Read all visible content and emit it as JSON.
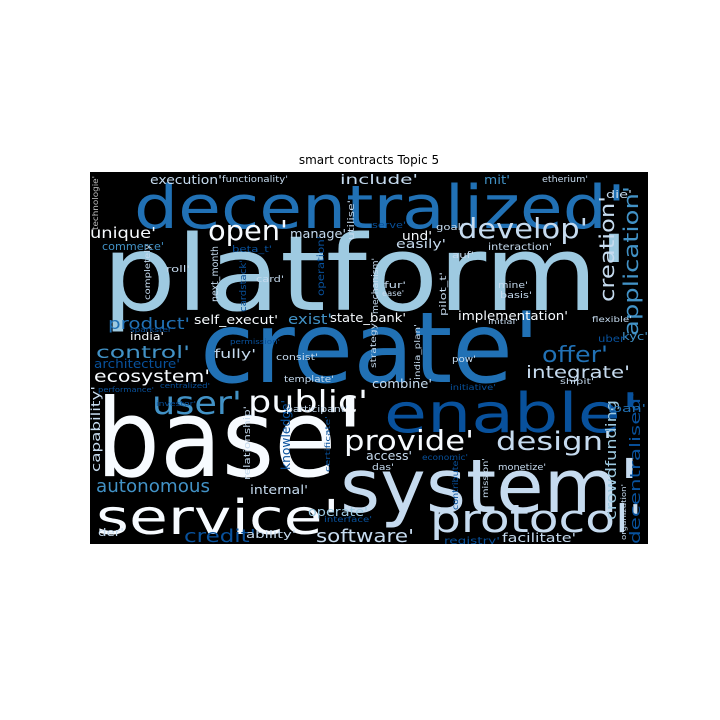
{
  "chart_data": {
    "type": "wordcloud",
    "title": "smart contracts Topic 5",
    "background": "#000000",
    "palette": {
      "light": "#c6dbef",
      "sky": "#9ecae1",
      "mid": "#4292c6",
      "deep": "#2171b5",
      "navy": "#08519c",
      "white": "#f7fbff",
      "grey": "#bdbdbd"
    },
    "words": [
      {
        "text": "platform'",
        "color": "sky"
      },
      {
        "text": "create'",
        "color": "deep"
      },
      {
        "text": "base'",
        "color": "white"
      },
      {
        "text": "system'",
        "color": "light"
      },
      {
        "text": "decentralized'",
        "color": "deep"
      },
      {
        "text": "service'",
        "color": "white"
      },
      {
        "text": "enable'",
        "color": "navy"
      },
      {
        "text": "protocol'",
        "color": "light"
      },
      {
        "text": "provide'",
        "color": "white"
      },
      {
        "text": "design'",
        "color": "light"
      },
      {
        "text": "develop'",
        "color": "light"
      },
      {
        "text": "public'",
        "color": "white"
      },
      {
        "text": "user'",
        "color": "mid"
      },
      {
        "text": "open'",
        "color": "white"
      },
      {
        "text": "application'",
        "color": "mid"
      },
      {
        "text": "creation'",
        "color": "light"
      },
      {
        "text": "offer'",
        "color": "deep"
      },
      {
        "text": "software'",
        "color": "light"
      },
      {
        "text": "credit'",
        "color": "navy"
      },
      {
        "text": "autonomous",
        "color": "mid"
      },
      {
        "text": "product'",
        "color": "deep"
      },
      {
        "text": "control'",
        "color": "mid"
      },
      {
        "text": "ecosystem'",
        "color": "white"
      },
      {
        "text": "integrate'",
        "color": "light"
      },
      {
        "text": "unique'",
        "color": "white"
      },
      {
        "text": "execution'",
        "color": "light"
      },
      {
        "text": "include'",
        "color": "light"
      },
      {
        "text": "crowdfunding",
        "color": "sky"
      },
      {
        "text": "decentralised'",
        "color": "navy"
      },
      {
        "text": "capability'",
        "color": "light"
      },
      {
        "text": "architecture'",
        "color": "navy"
      },
      {
        "text": "commerce'",
        "color": "mid"
      },
      {
        "text": "state_bank'",
        "color": "white"
      },
      {
        "text": "implementation'",
        "color": "white"
      },
      {
        "text": "knowledge'",
        "color": "navy"
      },
      {
        "text": "exist'",
        "color": "mid"
      },
      {
        "text": "mit'",
        "color": "mid"
      },
      {
        "text": "und'",
        "color": "white"
      },
      {
        "text": "easily'",
        "color": "light"
      },
      {
        "text": "manage'",
        "color": "light"
      },
      {
        "text": "self_execut'",
        "color": "white"
      },
      {
        "text": "fully'",
        "color": "light"
      },
      {
        "text": "combine'",
        "color": "light"
      },
      {
        "text": "access'",
        "color": "light"
      },
      {
        "text": "internal'",
        "color": "light"
      },
      {
        "text": "operate'",
        "color": "sky"
      },
      {
        "text": "ability'",
        "color": "light"
      },
      {
        "text": "facilitate'",
        "color": "light"
      },
      {
        "text": "registry'",
        "color": "navy"
      },
      {
        "text": "loan'",
        "color": "deep"
      },
      {
        "text": "kyc'",
        "color": "mid"
      },
      {
        "text": "uber'",
        "color": "navy"
      },
      {
        "text": "india'",
        "color": "white"
      },
      {
        "text": "der'",
        "color": "light"
      },
      {
        "text": "die'",
        "color": "light"
      },
      {
        "text": "etherium'",
        "color": "light"
      },
      {
        "text": "functionality'",
        "color": "light"
      },
      {
        "text": "technologie'",
        "color": "grey"
      },
      {
        "text": "roll'",
        "color": "light"
      },
      {
        "text": "beta_t'",
        "color": "navy"
      },
      {
        "text": "next_month",
        "color": "light"
      },
      {
        "text": "card'",
        "color": "light"
      },
      {
        "text": "cardstack'",
        "color": "navy"
      },
      {
        "text": "completely",
        "color": "light"
      },
      {
        "text": "operation'",
        "color": "navy"
      },
      {
        "text": "mechanism'",
        "color": "light"
      },
      {
        "text": "utilise'",
        "color": "light"
      },
      {
        "text": "serve'",
        "color": "navy"
      },
      {
        "text": "goal'",
        "color": "light"
      },
      {
        "text": "auf'",
        "color": "light"
      },
      {
        "text": "interaction'",
        "color": "light"
      },
      {
        "text": "fur'",
        "color": "light"
      },
      {
        "text": "ease'",
        "color": "light"
      },
      {
        "text": "pilot_t'",
        "color": "light"
      },
      {
        "text": "mine'",
        "color": "light"
      },
      {
        "text": "basis'",
        "color": "light"
      },
      {
        "text": "initial'",
        "color": "light"
      },
      {
        "text": "flexible'",
        "color": "light"
      },
      {
        "text": "sparkster'",
        "color": "navy"
      },
      {
        "text": "permission'",
        "color": "navy"
      },
      {
        "text": "consist'",
        "color": "light"
      },
      {
        "text": "strategy'",
        "color": "light"
      },
      {
        "text": "india_plan'",
        "color": "light"
      },
      {
        "text": "pow'",
        "color": "light"
      },
      {
        "text": "template'",
        "color": "light"
      },
      {
        "text": "performance'",
        "color": "navy"
      },
      {
        "text": "centralized'",
        "color": "navy"
      },
      {
        "text": "initiative'",
        "color": "navy"
      },
      {
        "text": "shipit'",
        "color": "light"
      },
      {
        "text": "participant'",
        "color": "light"
      },
      {
        "text": "investor'",
        "color": "navy"
      },
      {
        "text": "relationship'",
        "color": "light"
      },
      {
        "text": "das'",
        "color": "light"
      },
      {
        "text": "economic'",
        "color": "navy"
      },
      {
        "text": "monetize'",
        "color": "light"
      },
      {
        "text": "contribute'",
        "color": "navy"
      },
      {
        "text": "mission'",
        "color": "light"
      },
      {
        "text": "organization'",
        "color": "light"
      },
      {
        "text": "certificate'",
        "color": "navy"
      },
      {
        "text": "interface'",
        "color": "navy"
      }
    ]
  }
}
